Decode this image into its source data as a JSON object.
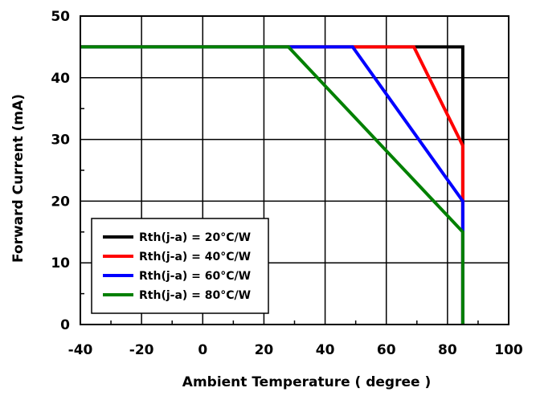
{
  "chart_data": {
    "type": "line",
    "xlabel": "Ambient Temperature ( degree )",
    "ylabel": "Forward Current (mA)",
    "xlim": [
      -40,
      100
    ],
    "ylim": [
      0,
      50
    ],
    "x_ticks": [
      -40,
      -20,
      0,
      20,
      40,
      60,
      80,
      100
    ],
    "y_ticks": [
      0,
      10,
      20,
      30,
      40,
      50
    ],
    "x_tick_labels": [
      "-40",
      "-20",
      "0",
      "20",
      "40",
      "60",
      "80",
      "100"
    ],
    "y_tick_labels": [
      "0",
      "10",
      "20",
      "30",
      "40",
      "50"
    ],
    "grid": true,
    "legend_position": "bottom-left",
    "series": [
      {
        "name": "Rth(j-a) = 20°C/W",
        "color": "#000000",
        "points": [
          [
            -40,
            45
          ],
          [
            85,
            45
          ],
          [
            85,
            0
          ]
        ]
      },
      {
        "name": "Rth(j-a) = 40°C/W",
        "color": "#ff0000",
        "points": [
          [
            -40,
            45
          ],
          [
            69,
            45
          ],
          [
            85,
            29
          ],
          [
            85,
            0
          ]
        ]
      },
      {
        "name": "Rth(j-a) = 60°C/W",
        "color": "#0000ff",
        "points": [
          [
            -40,
            45
          ],
          [
            49,
            45
          ],
          [
            85,
            20
          ],
          [
            85,
            0
          ]
        ]
      },
      {
        "name": "Rth(j-a) = 80°C/W",
        "color": "#008000",
        "points": [
          [
            -40,
            45
          ],
          [
            28,
            45
          ],
          [
            85,
            15
          ],
          [
            85,
            0
          ]
        ]
      }
    ]
  }
}
